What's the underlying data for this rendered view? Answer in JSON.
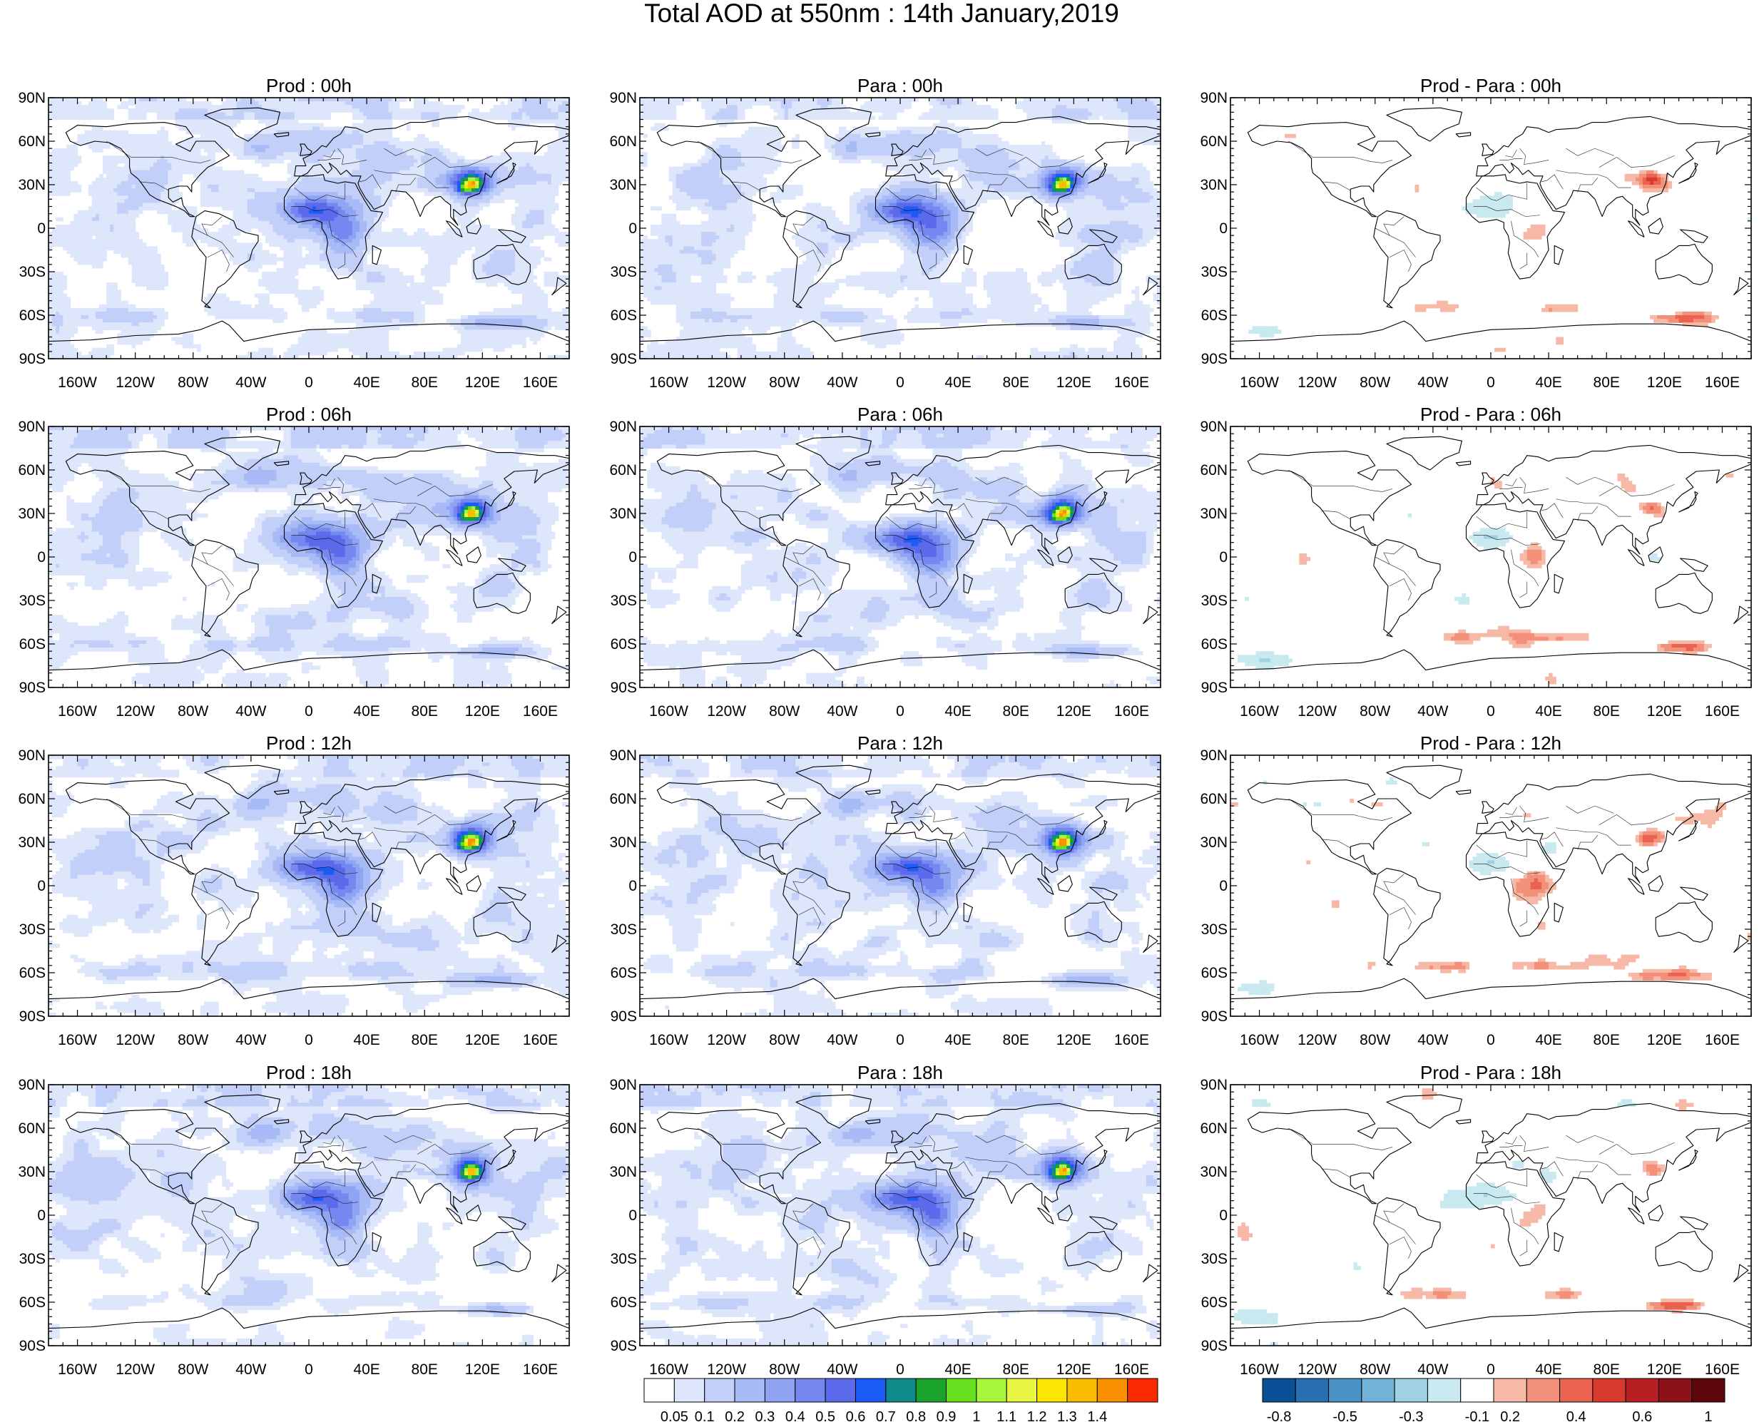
{
  "chart_data": {
    "type": "heatmap",
    "title": "Total AOD at 550nm : 14th January,2019",
    "panels": [
      {
        "row": 0,
        "col": 0,
        "title": "Prod : 00h",
        "kind": "aod",
        "hour": 0,
        "variant": 0
      },
      {
        "row": 0,
        "col": 1,
        "title": "Para : 00h",
        "kind": "aod",
        "hour": 0,
        "variant": 1
      },
      {
        "row": 0,
        "col": 2,
        "title": "Prod - Para : 00h",
        "kind": "diff",
        "hour": 0,
        "variant": 2
      },
      {
        "row": 1,
        "col": 0,
        "title": "Prod : 06h",
        "kind": "aod",
        "hour": 6,
        "variant": 0
      },
      {
        "row": 1,
        "col": 1,
        "title": "Para : 06h",
        "kind": "aod",
        "hour": 6,
        "variant": 1
      },
      {
        "row": 1,
        "col": 2,
        "title": "Prod - Para : 06h",
        "kind": "diff",
        "hour": 6,
        "variant": 2
      },
      {
        "row": 2,
        "col": 0,
        "title": "Prod : 12h",
        "kind": "aod",
        "hour": 12,
        "variant": 0
      },
      {
        "row": 2,
        "col": 1,
        "title": "Para : 12h",
        "kind": "aod",
        "hour": 12,
        "variant": 1
      },
      {
        "row": 2,
        "col": 2,
        "title": "Prod - Para : 12h",
        "kind": "diff",
        "hour": 12,
        "variant": 2
      },
      {
        "row": 3,
        "col": 0,
        "title": "Prod : 18h",
        "kind": "aod",
        "hour": 18,
        "variant": 0
      },
      {
        "row": 3,
        "col": 1,
        "title": "Para : 18h",
        "kind": "aod",
        "hour": 18,
        "variant": 1
      },
      {
        "row": 3,
        "col": 2,
        "title": "Prod - Para : 18h",
        "kind": "diff",
        "hour": 18,
        "variant": 2
      }
    ],
    "x_ticks": {
      "values": [
        -160,
        -120,
        -80,
        -40,
        0,
        40,
        80,
        120,
        160
      ],
      "labels": [
        "160W",
        "120W",
        "80W",
        "40W",
        "0",
        "40E",
        "80E",
        "120E",
        "160E"
      ]
    },
    "y_ticks": {
      "values": [
        90,
        60,
        30,
        0,
        -30,
        -60,
        -90
      ],
      "labels": [
        "90N",
        "60N",
        "30N",
        "0",
        "30S",
        "60S",
        "90S"
      ]
    },
    "xlim": [
      -180,
      180
    ],
    "ylim": [
      -90,
      90
    ],
    "aod_colorbar": {
      "labels": [
        "0.05",
        "0.1",
        "0.2",
        "0.3",
        "0.4",
        "0.5",
        "0.6",
        "0.7",
        "0.8",
        "0.9",
        "1",
        "1.1",
        "1.2",
        "1.3",
        "1.4"
      ],
      "colors": [
        "#ffffff",
        "#dde6fb",
        "#c2d0f9",
        "#a9bbf6",
        "#8fa4f3",
        "#7588f0",
        "#5b6aeb",
        "#1a5cf5",
        "#0d8b8b",
        "#19a32b",
        "#66e01f",
        "#a8f53d",
        "#e8f542",
        "#fae600",
        "#fabd00",
        "#fa8f00",
        "#fa2a00"
      ]
    },
    "diff_colorbar": {
      "labels": [
        "-0.8",
        "-0.5",
        "-0.3",
        "-0.1",
        "0.2",
        "0.4",
        "0.6",
        "1"
      ],
      "colors": [
        "#0b4f96",
        "#2a6fb1",
        "#4b92c6",
        "#72b2d6",
        "#9fd0e3",
        "#c9e9f1",
        "#ffffff",
        "#f7b9a7",
        "#f29079",
        "#e96350",
        "#d93a30",
        "#b71f23",
        "#8c1217",
        "#5e070a"
      ]
    }
  }
}
